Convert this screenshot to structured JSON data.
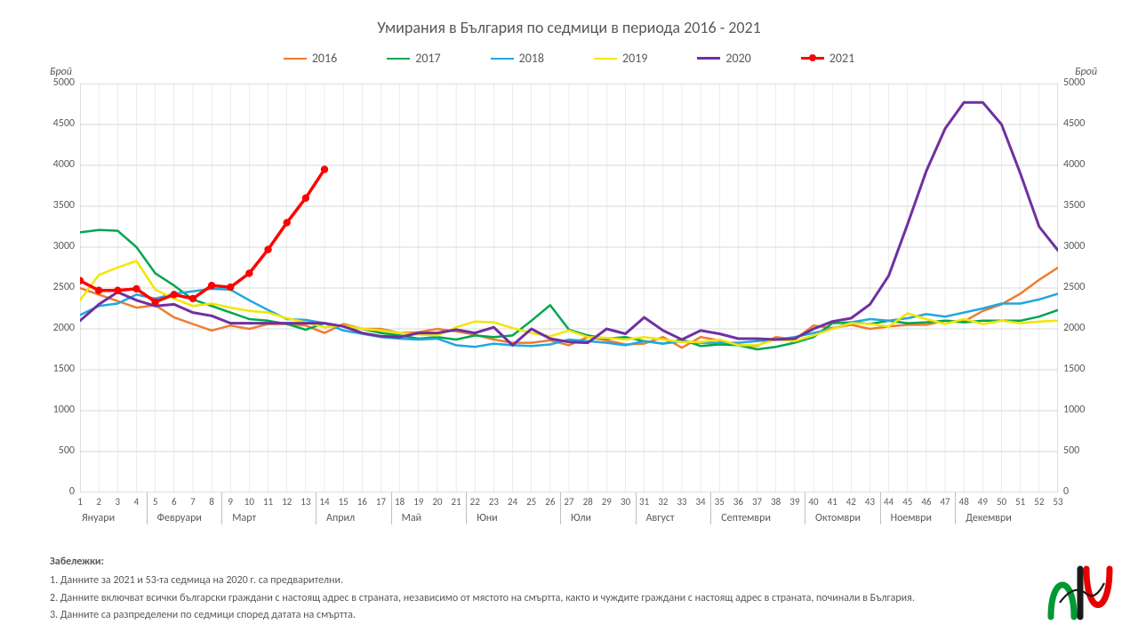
{
  "title": "Умирания в България по седмици в периода 2016 - 2021",
  "y_axis_label": "Брой",
  "ylim": [
    0,
    5000
  ],
  "ytick_step": 500,
  "yticks": [
    0,
    500,
    1000,
    1500,
    2000,
    2500,
    3000,
    3500,
    4000,
    4500,
    5000
  ],
  "x_count": 53,
  "months": [
    {
      "label": "Януари",
      "start": 1
    },
    {
      "label": "Февруари",
      "start": 5
    },
    {
      "label": "Март",
      "start": 9
    },
    {
      "label": "Април",
      "start": 14
    },
    {
      "label": "Май",
      "start": 18
    },
    {
      "label": "Юни",
      "start": 22
    },
    {
      "label": "Юли",
      "start": 27
    },
    {
      "label": "Август",
      "start": 31
    },
    {
      "label": "Септември",
      "start": 35
    },
    {
      "label": "Октомври",
      "start": 40
    },
    {
      "label": "Ноември",
      "start": 44
    },
    {
      "label": "Декември",
      "start": 48
    }
  ],
  "colors": {
    "grid": "#d9d9d9",
    "axis": "#bfbfbf",
    "text": "#595959",
    "logo_green": "#009933",
    "logo_red": "#e60000",
    "logo_black": "#1a1a1a"
  },
  "series": [
    {
      "name": "2016",
      "color": "#ed7d31",
      "width": 2.5,
      "markers": false,
      "data": [
        2500,
        2420,
        2340,
        2260,
        2290,
        2140,
        2060,
        1980,
        2040,
        2000,
        2060,
        2060,
        2040,
        1950,
        2060,
        2000,
        2000,
        1950,
        1960,
        2000,
        1970,
        1930,
        1870,
        1830,
        1830,
        1860,
        1800,
        1900,
        1860,
        1810,
        1820,
        1900,
        1770,
        1900,
        1860,
        1800,
        1790,
        1900,
        1870,
        2040,
        2010,
        2050,
        2000,
        2030,
        2050,
        2050,
        2100,
        2090,
        2220,
        2300,
        2430,
        2600,
        2750
      ]
    },
    {
      "name": "2017",
      "color": "#00a650",
      "width": 2.5,
      "markers": false,
      "data": [
        3180,
        3210,
        3200,
        3000,
        2680,
        2530,
        2360,
        2280,
        2200,
        2120,
        2100,
        2060,
        1990,
        2070,
        2030,
        2000,
        1950,
        1920,
        1880,
        1900,
        1870,
        1920,
        1900,
        1920,
        2100,
        2290,
        1990,
        1920,
        1880,
        1900,
        1850,
        1820,
        1870,
        1790,
        1810,
        1800,
        1750,
        1780,
        1830,
        1900,
        2070,
        2080,
        2060,
        2100,
        2070,
        2080,
        2100,
        2080,
        2100,
        2100,
        2100,
        2150,
        2230
      ]
    },
    {
      "name": "2018",
      "color": "#21a7e0",
      "width": 2.5,
      "markers": false,
      "data": [
        2170,
        2280,
        2310,
        2420,
        2370,
        2430,
        2460,
        2490,
        2480,
        2350,
        2230,
        2120,
        2110,
        2070,
        1980,
        1940,
        1900,
        1880,
        1870,
        1880,
        1800,
        1780,
        1820,
        1800,
        1790,
        1810,
        1870,
        1850,
        1830,
        1800,
        1850,
        1820,
        1850,
        1830,
        1830,
        1830,
        1850,
        1870,
        1900,
        1950,
        2000,
        2080,
        2120,
        2100,
        2130,
        2180,
        2150,
        2200,
        2250,
        2310,
        2310,
        2360,
        2430
      ]
    },
    {
      "name": "2019",
      "color": "#f2e600",
      "width": 2.5,
      "markers": false,
      "data": [
        2350,
        2660,
        2750,
        2830,
        2480,
        2370,
        2280,
        2310,
        2260,
        2220,
        2200,
        2130,
        2080,
        2020,
        2040,
        2000,
        1980,
        1950,
        1930,
        1920,
        2020,
        2090,
        2080,
        2010,
        1950,
        1910,
        1980,
        1900,
        1890,
        1870,
        1900,
        1870,
        1840,
        1840,
        1870,
        1800,
        1800,
        1870,
        1850,
        1920,
        2000,
        2070,
        2060,
        2030,
        2190,
        2120,
        2060,
        2120,
        2060,
        2100,
        2070,
        2090,
        2100
      ]
    },
    {
      "name": "2020",
      "color": "#7030a0",
      "width": 3,
      "markers": false,
      "data": [
        2100,
        2300,
        2450,
        2350,
        2280,
        2300,
        2200,
        2160,
        2070,
        2070,
        2070,
        2070,
        2070,
        2070,
        2030,
        1950,
        1910,
        1900,
        1950,
        1950,
        1990,
        1950,
        2020,
        1800,
        2000,
        1880,
        1840,
        1830,
        2000,
        1940,
        2140,
        1980,
        1870,
        1980,
        1940,
        1880,
        1880,
        1870,
        1880,
        2000,
        2090,
        2130,
        2300,
        2650,
        3280,
        3930,
        4450,
        4770,
        4770,
        4500,
        3900,
        3250,
        2960
      ]
    },
    {
      "name": "2021",
      "color": "#ff0000",
      "width": 3.5,
      "markers": true,
      "data": [
        2590,
        2470,
        2470,
        2490,
        2330,
        2420,
        2370,
        2530,
        2510,
        2680,
        2970,
        3300,
        3600,
        3950
      ]
    }
  ],
  "legend_order": [
    "2016",
    "2017",
    "2018",
    "2019",
    "2020",
    "2021"
  ],
  "notes": {
    "header": "Забележки:",
    "n1": "1. Данните за 2021 и 53-та седмица на 2020 г. са предварителни.",
    "n2": "2. Данните включват всички български граждани с настоящ адрес в страната, независимо от мястото на смъртта, както и чуждите граждани с настоящ адрес в страната, починали в България.",
    "n3": "3. Данните са разпределени по седмици според датата на смъртта."
  },
  "label_fontsize": 12,
  "title_fontsize": 18
}
